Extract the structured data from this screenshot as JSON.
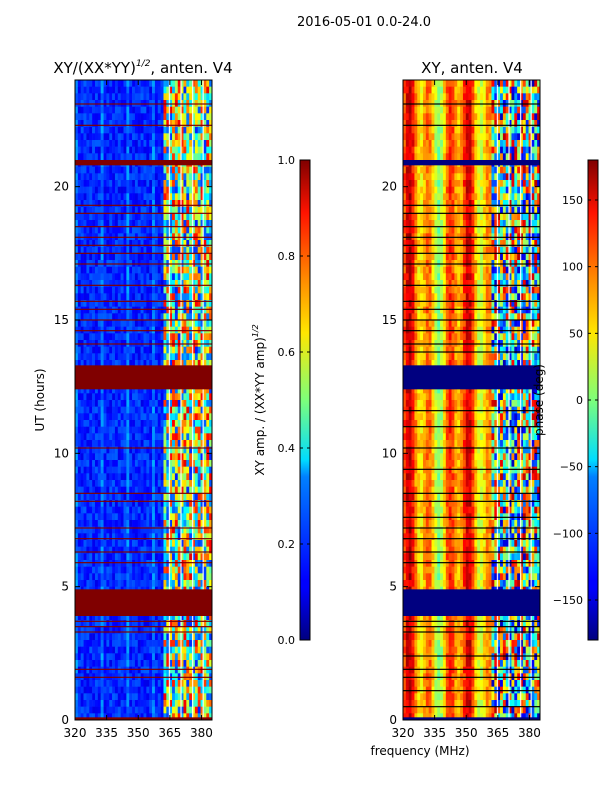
{
  "figure": {
    "suptitle": "2016-05-01 0.0-24.0",
    "shared_xlabel": "frequency (MHz)"
  },
  "chart_data": [
    {
      "type": "heatmap",
      "title_main": "XY/(XX*YY)",
      "title_sup": "1/2",
      "title_rest": ", anten. V4",
      "ylabel": "UT (hours)",
      "x_ticks": [
        320,
        335,
        350,
        365,
        380
      ],
      "x_tick_labels": [
        "320",
        "335",
        "350",
        "365",
        "380"
      ],
      "xlim": [
        320,
        385
      ],
      "y_ticks": [
        0,
        5,
        10,
        15,
        20
      ],
      "y_tick_labels": [
        "0",
        "5",
        "10",
        "15",
        "20"
      ],
      "ylim": [
        0,
        24
      ],
      "colorbar": {
        "label_main": "XY amp. / (XX*YY amp)",
        "label_sup": "1/2",
        "range": [
          0,
          1
        ],
        "ticks": [
          0.0,
          0.2,
          0.4,
          0.6,
          0.8,
          1.0
        ],
        "tick_labels": [
          "0.0",
          "0.2",
          "0.4",
          "0.6",
          "0.8",
          "1.0"
        ],
        "colormap": "jet"
      },
      "masked_bands_hours": [
        [
          0.0,
          0.1
        ],
        [
          3.9,
          4.9
        ],
        [
          12.4,
          13.3
        ],
        [
          20.8,
          21.0
        ]
      ],
      "flag_lines_hours": [
        1.6,
        1.9,
        3.3,
        3.5,
        3.7,
        5.9,
        6.3,
        6.8,
        7.2,
        8.2,
        8.5,
        10.2,
        14.1,
        14.6,
        15.0,
        15.4,
        15.7,
        16.3,
        17.1,
        17.5,
        17.8,
        18.1,
        18.5,
        19.0,
        19.3,
        22.3,
        23.1
      ],
      "flag_color": "#800000",
      "masked_value": 1.0
    },
    {
      "type": "heatmap",
      "title_main": "XY, anten. V4",
      "ylabel": "phase (deg)",
      "x_ticks": [
        320,
        335,
        350,
        365,
        380
      ],
      "x_tick_labels": [
        "320",
        "335",
        "350",
        "365",
        "380"
      ],
      "xlim": [
        320,
        385
      ],
      "y_ticks": [
        0,
        5,
        10,
        15,
        20
      ],
      "y_tick_labels": [
        "0",
        "5",
        "10",
        "15",
        "20"
      ],
      "ylim": [
        0,
        24
      ],
      "colorbar": {
        "range": [
          -180,
          180
        ],
        "ticks": [
          -150,
          -100,
          -50,
          0,
          50,
          100,
          150
        ],
        "tick_labels": [
          "−150",
          "−100",
          "−50",
          "0",
          "50",
          "100",
          "150"
        ],
        "colormap": "jet"
      },
      "masked_bands_hours": [
        [
          0.0,
          0.1
        ],
        [
          3.9,
          4.9
        ],
        [
          12.4,
          13.3
        ],
        [
          20.8,
          21.0
        ]
      ],
      "flag_lines_hours": [
        0.5,
        1.1,
        1.6,
        1.9,
        2.4,
        3.3,
        3.5,
        3.7,
        5.9,
        6.3,
        6.8,
        7.2,
        7.6,
        8.2,
        8.5,
        9.4,
        10.2,
        11.0,
        11.6,
        13.8,
        14.1,
        14.6,
        15.0,
        15.4,
        15.7,
        16.3,
        17.1,
        17.5,
        17.8,
        18.1,
        18.5,
        19.0,
        19.3,
        22.3,
        23.1
      ],
      "flag_color": "#000000",
      "masked_value": -180
    }
  ]
}
